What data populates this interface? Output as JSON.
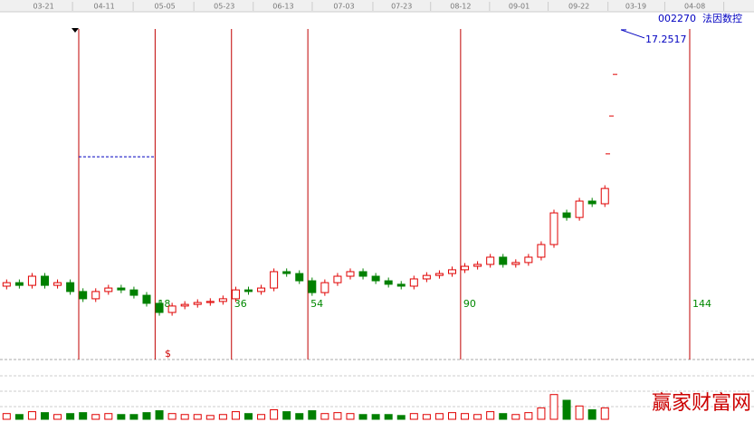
{
  "chart_data": {
    "type": "candlestick",
    "code": "002270",
    "name": "法因数控",
    "xlim": [
      -18.56,
      159.15
    ],
    "ylim": [
      5,
      17.35
    ],
    "vlim": [
      0,
      60
    ],
    "up_color": "#e00000",
    "down_color": "#008000",
    "date_ticks": [
      {
        "value": -8.3,
        "label": "03-21"
      },
      {
        "value": 6,
        "label": "04-11"
      },
      {
        "value": 20.3,
        "label": "05-05"
      },
      {
        "value": 34.3,
        "label": "05-23"
      },
      {
        "value": 48.2,
        "label": "06-13"
      },
      {
        "value": 62.5,
        "label": "07-03"
      },
      {
        "value": 76.1,
        "label": "07-23"
      },
      {
        "value": 90,
        "label": "08-12"
      },
      {
        "value": 103.8,
        "label": "09-01"
      },
      {
        "value": 117.9,
        "label": "09-22"
      },
      {
        "value": 131.3,
        "label": "03-19"
      },
      {
        "value": 145.2,
        "label": "04-08"
      }
    ],
    "x": [
      -17,
      -14,
      -11,
      -8,
      -5,
      -2,
      1,
      4,
      7,
      10,
      13,
      16,
      19,
      22,
      25,
      28,
      31,
      34,
      37,
      40,
      43,
      46,
      49,
      52,
      55,
      58,
      61,
      64,
      67,
      70,
      73,
      76,
      79,
      82,
      85,
      88,
      91,
      94,
      97,
      100,
      103,
      106,
      109,
      112,
      115,
      118,
      121,
      124
    ],
    "open": [
      7.7,
      7.83,
      7.73,
      8.07,
      7.73,
      7.83,
      7.5,
      7.23,
      7.5,
      7.63,
      7.56,
      7.36,
      7.06,
      6.72,
      6.96,
      7.02,
      7.09,
      7.13,
      7.23,
      7.56,
      7.5,
      7.63,
      8.24,
      8.17,
      7.9,
      7.46,
      7.83,
      8.07,
      8.24,
      8.07,
      7.9,
      7.77,
      7.7,
      7.97,
      8.1,
      8.17,
      8.31,
      8.44,
      8.51,
      8.78,
      8.51,
      8.58,
      8.78,
      9.25,
      10.43,
      10.26,
      10.87,
      10.77
    ],
    "close": [
      7.83,
      7.73,
      8.07,
      7.73,
      7.83,
      7.5,
      7.23,
      7.5,
      7.63,
      7.56,
      7.36,
      7.06,
      6.72,
      6.96,
      7.02,
      7.09,
      7.13,
      7.23,
      7.56,
      7.5,
      7.63,
      8.24,
      8.17,
      7.9,
      7.46,
      7.83,
      8.07,
      8.24,
      8.07,
      7.9,
      7.77,
      7.7,
      7.97,
      8.1,
      8.17,
      8.31,
      8.44,
      8.51,
      8.78,
      8.51,
      8.58,
      8.78,
      9.25,
      10.43,
      10.26,
      10.87,
      10.77,
      11.34
    ],
    "high": [
      7.95,
      7.95,
      8.19,
      8.19,
      7.95,
      7.95,
      7.62,
      7.62,
      7.75,
      7.75,
      7.68,
      7.48,
      7.18,
      7.08,
      7.14,
      7.21,
      7.25,
      7.35,
      7.68,
      7.68,
      7.75,
      8.36,
      8.36,
      8.29,
      8.02,
      7.95,
      8.19,
      8.36,
      8.36,
      8.19,
      8.02,
      7.89,
      8.09,
      8.22,
      8.29,
      8.43,
      8.56,
      8.63,
      8.9,
      8.9,
      8.7,
      8.9,
      9.37,
      10.55,
      10.55,
      10.99,
      10.99,
      11.46
    ],
    "low": [
      7.58,
      7.61,
      7.61,
      7.61,
      7.61,
      7.38,
      7.11,
      7.11,
      7.38,
      7.44,
      7.24,
      6.94,
      6.6,
      6.6,
      6.84,
      6.9,
      6.97,
      7.01,
      7.11,
      7.38,
      7.38,
      7.51,
      8.05,
      7.78,
      7.34,
      7.34,
      7.71,
      7.95,
      7.95,
      7.78,
      7.65,
      7.58,
      7.58,
      7.85,
      7.98,
      8.05,
      8.19,
      8.32,
      8.39,
      8.39,
      8.39,
      8.46,
      8.66,
      9.13,
      10.14,
      10.14,
      10.65,
      10.65
    ],
    "volume": [
      6,
      5,
      8,
      7,
      5,
      6,
      7,
      5,
      6,
      5,
      5,
      7,
      9,
      6,
      5,
      5,
      4,
      5,
      8,
      6,
      5,
      10,
      8,
      6,
      9,
      6,
      7,
      6,
      5,
      5,
      5,
      4,
      6,
      5,
      6,
      7,
      6,
      5,
      8,
      6,
      5,
      7,
      12,
      26,
      20,
      14,
      10,
      12
    ],
    "fib_lines": {
      "color": "#c00000",
      "x": [
        0,
        18,
        36,
        54,
        90,
        144
      ]
    },
    "range_line": {
      "value": 12.52,
      "x": [
        0,
        18
      ],
      "color": "#0000c0"
    },
    "targets": [
      15.59,
      14.04,
      12.63
    ],
    "price_label": 17.2517,
    "marker": "$",
    "watermark": "赢家财富网"
  }
}
